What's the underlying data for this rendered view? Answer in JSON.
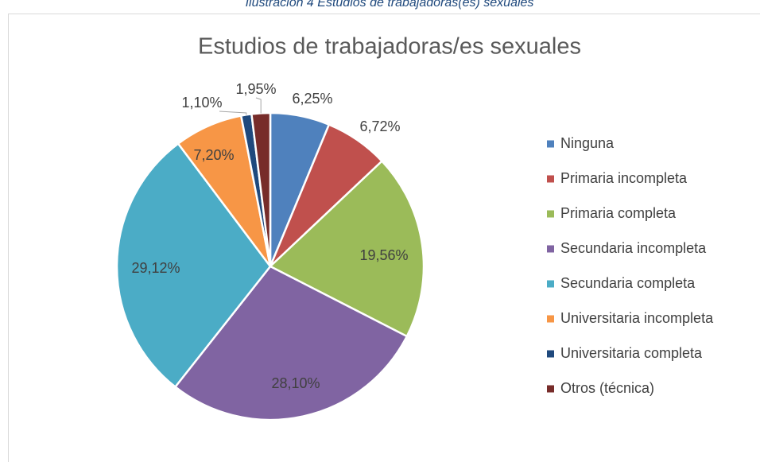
{
  "caption": "Ilustración 4 Estudios de trabajadoras(es) sexuales",
  "chart_data": {
    "type": "pie",
    "title": "Estudios de trabajadoras/es sexuales",
    "categories": [
      "Ninguna",
      "Primaria incompleta",
      "Primaria completa",
      "Secundaria incompleta",
      "Secundaria completa",
      "Universitaria incompleta",
      "Universitaria completa",
      "Otros (técnica)"
    ],
    "values": [
      6.25,
      6.72,
      19.56,
      28.1,
      29.12,
      7.2,
      1.1,
      1.95
    ],
    "value_labels": [
      "6,25%",
      "6,72%",
      "19,56%",
      "28,10%",
      "29,12%",
      "7,20%",
      "1,10%",
      "1,95%"
    ],
    "colors": [
      "#4f81bd",
      "#c0504d",
      "#9bbb59",
      "#8064a2",
      "#4bacc6",
      "#f79646",
      "#1f497d",
      "#772c2a"
    ],
    "legend": "right"
  }
}
